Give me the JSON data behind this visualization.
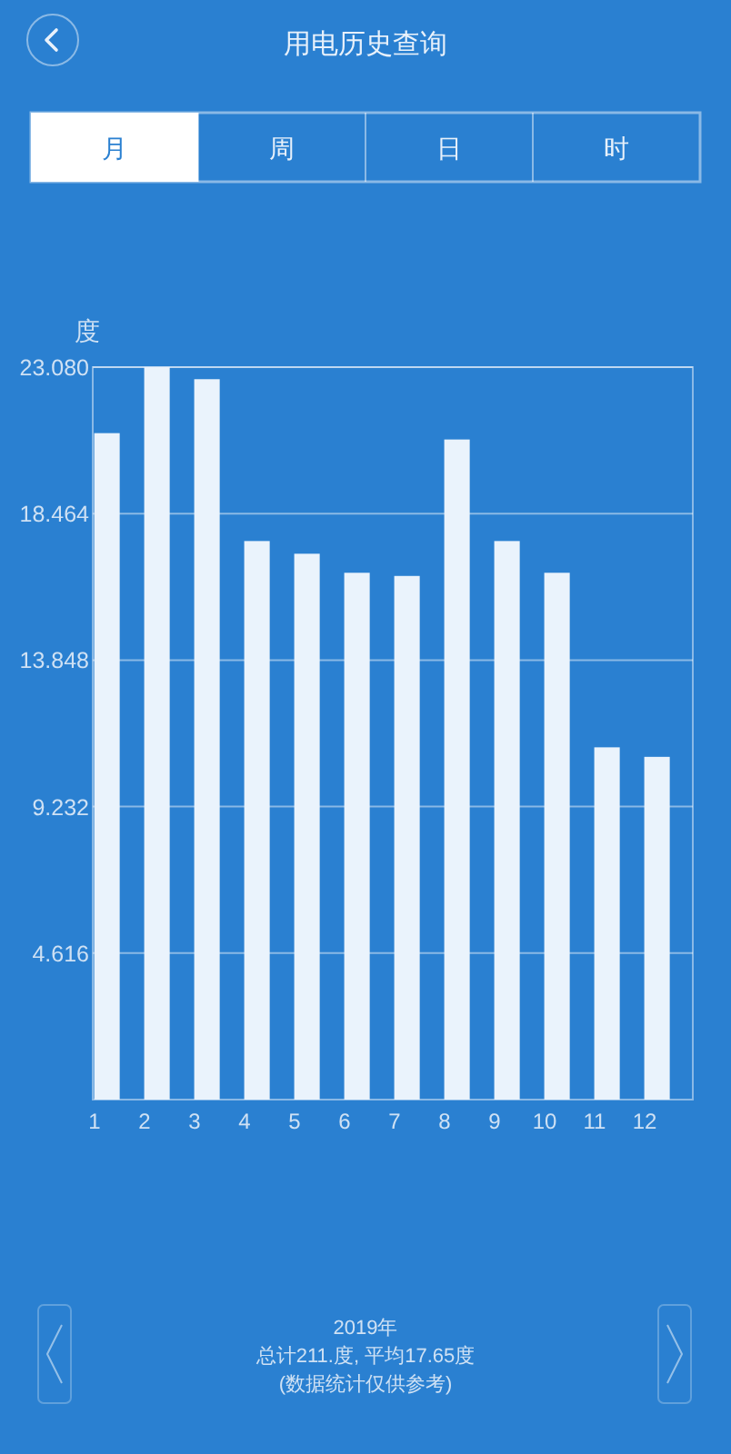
{
  "chart_data": [
    {
      "type": "other",
      "title": "用电历史查询",
      "annotations": [
        "月",
        "周",
        "日",
        "时"
      ]
    },
    {
      "type": "bar",
      "ylabel": "度",
      "categories": [
        "1",
        "2",
        "3",
        "4",
        "5",
        "6",
        "7",
        "8",
        "9",
        "10",
        "11",
        "12"
      ],
      "values": [
        21.0,
        23.08,
        22.7,
        17.6,
        17.2,
        16.6,
        16.5,
        20.8,
        17.6,
        16.6,
        11.1,
        10.8
      ],
      "color": "#eaf3fc",
      "ylim": [
        0,
        23.08
      ],
      "yticks": [
        4.616,
        9.232,
        13.848,
        18.464,
        {
          "value": 23.08,
          "label": "23.080"
        }
      ],
      "grid": "y",
      "annotations": [
        "2019年",
        "总计211.度, 平均17.65度",
        "(数据统计仅供参考)"
      ]
    }
  ]
}
